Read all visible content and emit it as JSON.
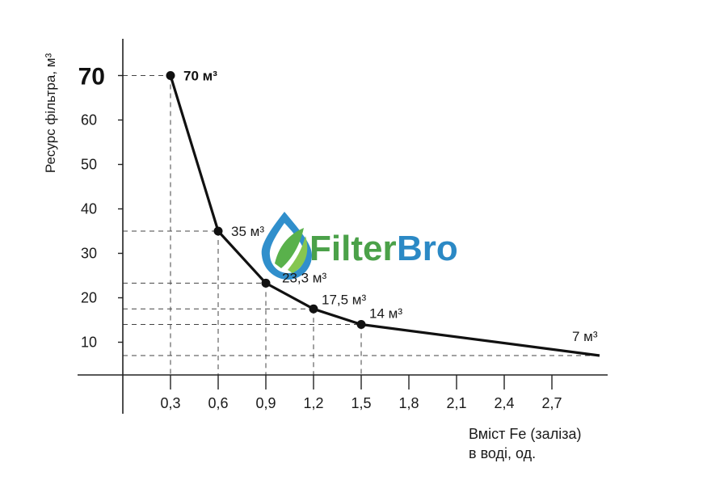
{
  "chart_data": {
    "type": "line",
    "ylabel": "Ресурс фільтра, м³",
    "xlabel_lines": [
      "Вміст Fe (заліза)",
      "в воді, од."
    ],
    "xlim": [
      0,
      3.0
    ],
    "ylim": [
      0,
      78
    ],
    "x_ticks": [
      "0,3",
      "0,6",
      "0,9",
      "1,2",
      "1,5",
      "1,8",
      "2,1",
      "2,4",
      "2,7"
    ],
    "x_tick_values": [
      0.3,
      0.6,
      0.9,
      1.2,
      1.5,
      1.8,
      2.1,
      2.4,
      2.7
    ],
    "y_ticks": [
      "10",
      "20",
      "30",
      "40",
      "50",
      "60",
      "70"
    ],
    "y_tick_values": [
      10,
      20,
      30,
      40,
      50,
      60,
      70
    ],
    "highlighted_y_tick": "70",
    "grid": false,
    "guides": "dashed lines from each marked point to both axes",
    "series": [
      {
        "color": "#111111",
        "points": [
          {
            "x": 0.3,
            "y": 70,
            "label": "70 м³",
            "marker": true,
            "bold": true
          },
          {
            "x": 0.6,
            "y": 35,
            "label": "35 м³",
            "marker": true
          },
          {
            "x": 0.9,
            "y": 23.3,
            "label": "23,3 м³",
            "marker": true
          },
          {
            "x": 1.2,
            "y": 17.5,
            "label": "17,5 м³",
            "marker": true
          },
          {
            "x": 1.5,
            "y": 14,
            "label": "14 м³",
            "marker": true
          },
          {
            "x": 3.0,
            "y": 7,
            "label": "7 м³",
            "marker": false
          }
        ]
      }
    ]
  },
  "watermark": {
    "text_part1": "Filter",
    "text_part2": "Bro",
    "color_part1": "#3c9a3a",
    "color_part2": "#1a7fc1"
  }
}
